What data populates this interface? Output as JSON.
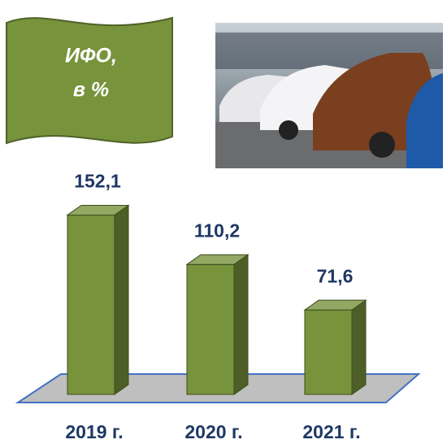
{
  "chart_data": {
    "type": "bar3d",
    "title": [
      "ИФО,",
      "в %"
    ],
    "categories": [
      "2019 г.",
      "2020 г.",
      "2021 г."
    ],
    "values": [
      152.1,
      110.2,
      71.6
    ],
    "value_labels": [
      "152,1",
      "110,2",
      "71,6"
    ],
    "color": "#77933c"
  }
}
